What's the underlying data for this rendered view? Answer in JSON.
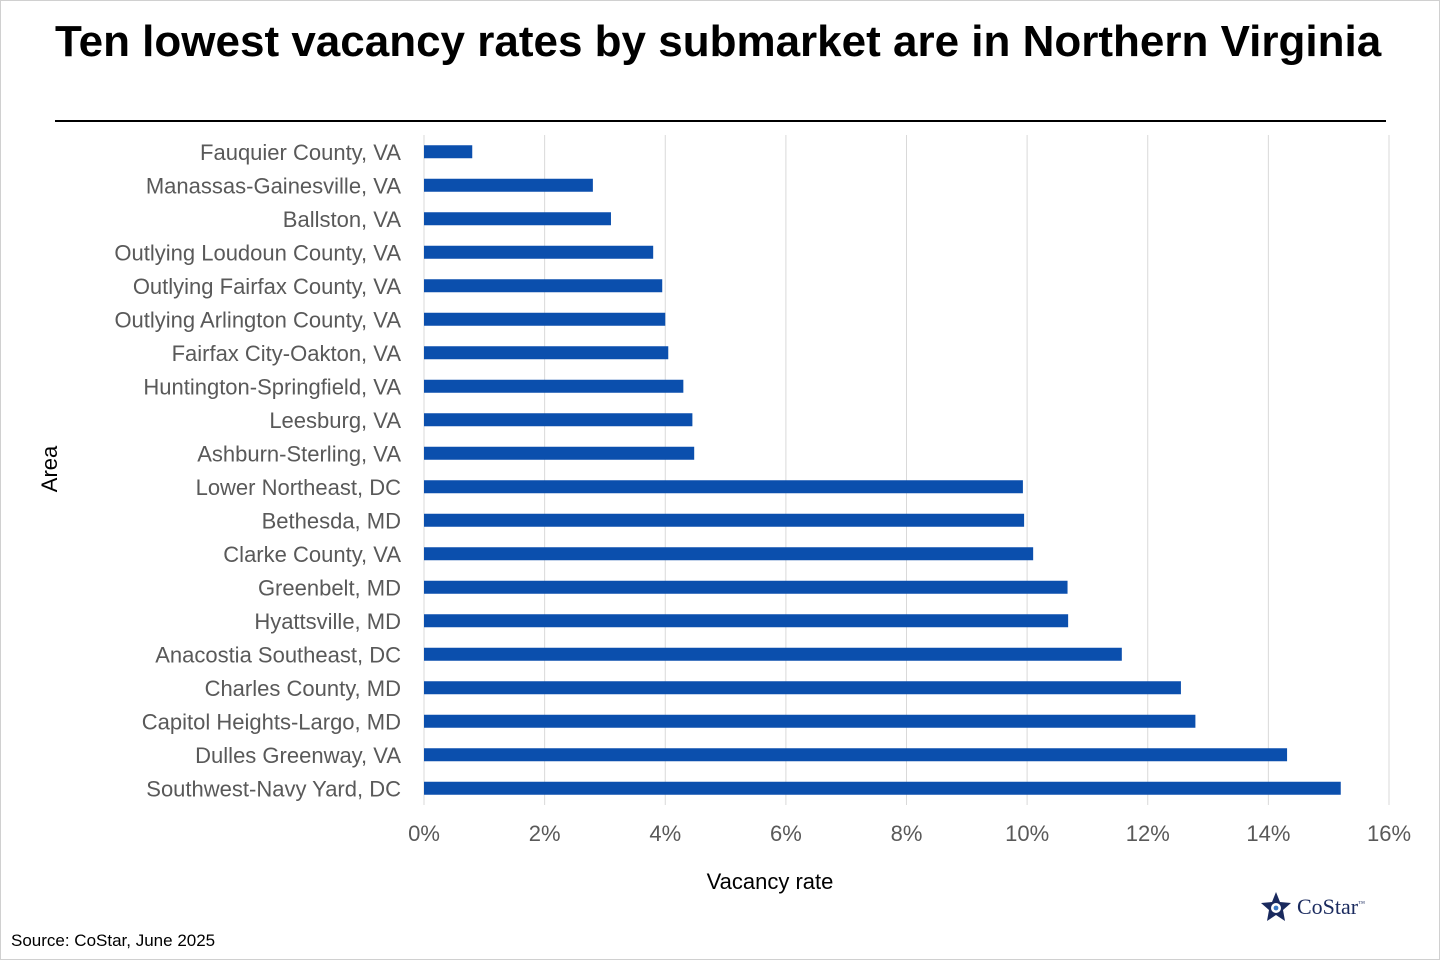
{
  "title": "Ten lowest vacancy rates by submarket are in Northern Virginia",
  "source": "Source: CoStar, June 2025",
  "logo": {
    "name": "CoStar",
    "tm": "™",
    "icon": "costar-star-icon"
  },
  "colors": {
    "bar": "#0b4fad",
    "grid": "#d9d9d9",
    "tick_text": "#595959",
    "label_text": "#000000"
  },
  "chart_data": {
    "type": "bar",
    "orientation": "horizontal",
    "title": "Ten lowest vacancy rates by submarket are in Northern Virginia",
    "xlabel": "Vacancy rate",
    "ylabel": "Area",
    "xlim": [
      0,
      16
    ],
    "x_ticks": [
      "0%",
      "2%",
      "4%",
      "6%",
      "8%",
      "10%",
      "12%",
      "14%",
      "16%"
    ],
    "x_unit": "%",
    "grid": "vertical",
    "legend": "none",
    "categories": [
      "Fauquier County, VA",
      "Manassas-Gainesville, VA",
      "Ballston, VA",
      "Outlying Loudoun County, VA",
      "Outlying Fairfax County, VA",
      "Outlying Arlington County, VA",
      "Fairfax City-Oakton, VA",
      "Huntington-Springfield, VA",
      "Leesburg, VA",
      "Ashburn-Sterling, VA",
      "Lower Northeast, DC",
      "Bethesda, MD",
      "Clarke County, VA",
      "Greenbelt, MD",
      "Hyattsville, MD",
      "Anacostia Southeast, DC",
      "Charles County, MD",
      "Capitol Heights-Largo, MD",
      "Dulles Greenway, VA",
      "Southwest-Navy Yard, DC"
    ],
    "values": [
      0.8,
      2.8,
      3.1,
      3.8,
      3.95,
      4.0,
      4.05,
      4.3,
      4.45,
      4.48,
      9.93,
      9.95,
      10.1,
      10.67,
      10.68,
      11.57,
      12.55,
      12.79,
      14.31,
      15.2
    ]
  }
}
